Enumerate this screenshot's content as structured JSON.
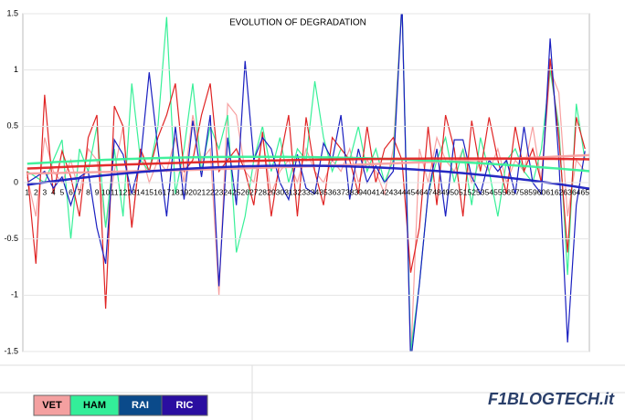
{
  "chart_data": {
    "type": "line",
    "title": "EVOLUTION OF DEGRADATION",
    "categories": [
      "1",
      "2",
      "3",
      "4",
      "5",
      "6",
      "7",
      "8",
      "9",
      "10",
      "11",
      "12",
      "13",
      "14",
      "15",
      "16",
      "17",
      "18",
      "19",
      "20",
      "21",
      "22",
      "23",
      "24",
      "25",
      "26",
      "27",
      "28",
      "29",
      "30",
      "31",
      "32",
      "33",
      "34",
      "35",
      "36",
      "37",
      "38",
      "39",
      "40",
      "41",
      "42",
      "43",
      "44",
      "45",
      "46",
      "47",
      "48",
      "49",
      "50",
      "51",
      "52",
      "53",
      "54",
      "55",
      "56",
      "57",
      "58",
      "59",
      "60",
      "61",
      "62",
      "63",
      "64",
      "65"
    ],
    "series": [
      {
        "name": "VET",
        "color": "#f7a0a0",
        "legend_color": "#f4a0a0",
        "values": [
          0.05,
          -0.3,
          0.4,
          0.1,
          0.0,
          0.2,
          -0.1,
          0.3,
          0.2,
          -0.4,
          0.1,
          0.5,
          -0.4,
          0.3,
          0.0,
          0.2,
          0.1,
          0.4,
          0.0,
          0.6,
          0.2,
          0.3,
          -1.0,
          0.7,
          0.6,
          0.1,
          0.0,
          0.4,
          -0.1,
          0.1,
          0.2,
          0.0,
          0.3,
          0.1,
          0.0,
          0.2,
          0.1,
          0.3,
          0.0,
          0.2,
          0.1,
          -0.1,
          0.3,
          1.6,
          -1.6,
          0.3,
          0.0,
          0.4,
          0.2,
          0.1,
          0.3,
          0.0,
          0.2,
          0.1,
          0.3,
          0.0,
          0.2,
          0.1,
          0.5,
          0.0,
          1.0,
          0.8,
          -0.3,
          0.2,
          0.1
        ]
      },
      {
        "name": "HAM",
        "color": "#38f098",
        "legend_color": "#33ee99",
        "values": [
          0.1,
          0.05,
          0.0,
          0.2,
          0.38,
          -0.5,
          0.3,
          0.1,
          0.5,
          -0.4,
          0.3,
          -0.3,
          0.88,
          0.2,
          0.1,
          0.5,
          1.47,
          -0.1,
          0.3,
          0.88,
          0.1,
          0.5,
          0.3,
          0.6,
          -0.62,
          -0.3,
          0.2,
          0.5,
          0.1,
          0.4,
          0.0,
          0.3,
          0.2,
          0.9,
          0.4,
          0.1,
          0.3,
          0.2,
          0.5,
          0.1,
          0.3,
          0.0,
          0.2,
          1.6,
          -1.5,
          -0.9,
          -0.1,
          0.2,
          0.4,
          0.0,
          0.3,
          -0.2,
          0.4,
          0.1,
          -0.3,
          0.2,
          0.3,
          0.1,
          0.0,
          0.3,
          1.0,
          0.5,
          -0.82,
          0.7,
          0.2
        ]
      },
      {
        "name": "RAI",
        "color": "#e02424",
        "legend_color": "#0a4a8a",
        "values": [
          0.1,
          -0.72,
          0.78,
          -0.1,
          0.28,
          0.05,
          -0.3,
          0.4,
          0.6,
          -1.12,
          0.68,
          0.5,
          -0.4,
          0.3,
          0.1,
          0.4,
          0.6,
          0.88,
          0.1,
          0.2,
          0.6,
          0.88,
          0.1,
          0.2,
          0.3,
          0.1,
          -0.2,
          0.45,
          -0.3,
          0.2,
          0.6,
          -0.3,
          0.58,
          0.1,
          -0.2,
          0.4,
          0.3,
          0.2,
          -0.1,
          0.5,
          0.0,
          0.3,
          0.4,
          0.2,
          -0.8,
          -0.4,
          0.5,
          -0.2,
          0.6,
          0.3,
          -0.3,
          0.55,
          0.1,
          0.58,
          0.2,
          -0.1,
          0.5,
          0.1,
          0.3,
          0.0,
          1.1,
          0.4,
          -0.62,
          0.58,
          0.3
        ]
      },
      {
        "name": "RIC",
        "color": "#1a1fc0",
        "legend_color": "#2a0ea0",
        "values": [
          0.0,
          0.05,
          0.1,
          -0.05,
          0.05,
          -0.2,
          0.05,
          0.1,
          -0.4,
          -0.72,
          0.38,
          0.25,
          -0.1,
          0.2,
          0.98,
          0.3,
          -0.3,
          0.5,
          -0.15,
          0.55,
          0.05,
          0.6,
          -0.92,
          0.4,
          -0.2,
          1.08,
          0.2,
          0.4,
          0.3,
          0.0,
          -0.15,
          0.25,
          -0.05,
          -0.1,
          0.35,
          0.2,
          0.6,
          -0.15,
          0.3,
          0.0,
          0.15,
          0.0,
          0.1,
          1.6,
          -1.6,
          -0.9,
          -0.1,
          0.3,
          -0.3,
          0.38,
          0.38,
          0.05,
          -0.1,
          0.2,
          0.1,
          0.2,
          -0.1,
          0.5,
          0.0,
          -0.1,
          1.28,
          0.2,
          -1.42,
          -0.2,
          0.28
        ]
      }
    ],
    "ylim": [
      -1.5,
      1.5
    ],
    "yticks": [
      -1.5,
      -1,
      -0.5,
      0,
      0.5,
      1,
      1.5
    ],
    "grid": true,
    "trendline": "poly2",
    "watermark": "F1BLOGTECH.it"
  }
}
